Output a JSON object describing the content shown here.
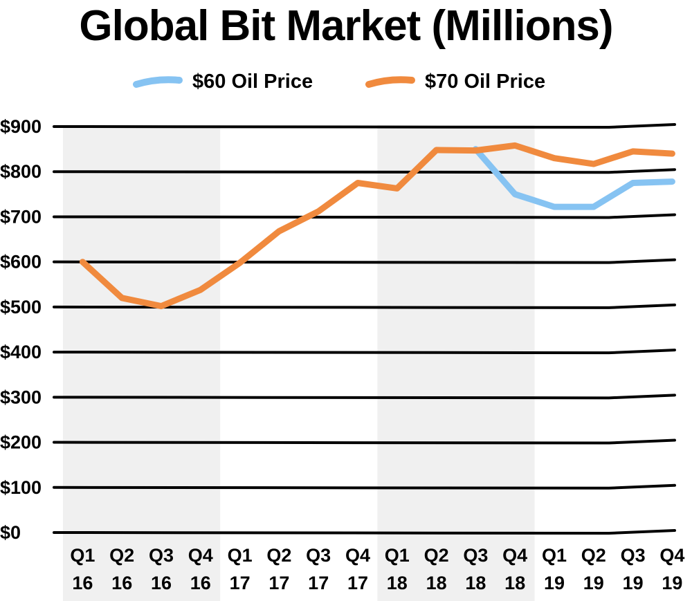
{
  "chart_data": {
    "type": "line",
    "title": "Global Bit Market (Millions)",
    "xlabel": "",
    "ylabel": "",
    "categories": [
      [
        "Q1",
        "16"
      ],
      [
        "Q2",
        "16"
      ],
      [
        "Q3",
        "16"
      ],
      [
        "Q4",
        "16"
      ],
      [
        "Q1",
        "17"
      ],
      [
        "Q2",
        "17"
      ],
      [
        "Q3",
        "17"
      ],
      [
        "Q4",
        "17"
      ],
      [
        "Q1",
        "18"
      ],
      [
        "Q2",
        "18"
      ],
      [
        "Q3",
        "18"
      ],
      [
        "Q4",
        "18"
      ],
      [
        "Q1",
        "19"
      ],
      [
        "Q2",
        "19"
      ],
      [
        "Q3",
        "19"
      ],
      [
        "Q4",
        "19"
      ]
    ],
    "ylim": [
      0,
      900
    ],
    "yticks": [
      0,
      100,
      200,
      300,
      400,
      500,
      600,
      700,
      800,
      900
    ],
    "ytick_labels": [
      "$0",
      "$100",
      "$200",
      "$300",
      "$400",
      "$500",
      "$600",
      "$700",
      "$800",
      "$900"
    ],
    "grid": true,
    "legend_position": "top",
    "shaded_bands": [
      [
        0,
        3
      ],
      [
        8,
        11
      ]
    ],
    "series": [
      {
        "name": "$60 Oil Price",
        "color": "#86c3f2",
        "values": [
          null,
          null,
          null,
          null,
          null,
          null,
          null,
          null,
          null,
          null,
          850,
          750,
          722,
          722,
          775,
          778
        ]
      },
      {
        "name": "$70 Oil Price",
        "color": "#f08a3e",
        "values": [
          600,
          520,
          502,
          538,
          598,
          668,
          712,
          775,
          763,
          848,
          847,
          858,
          830,
          817,
          845,
          840
        ]
      }
    ]
  }
}
